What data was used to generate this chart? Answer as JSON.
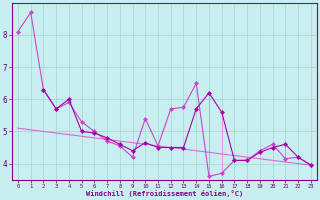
{
  "background_color": "#c8eef0",
  "grid_color": "#a0d8d0",
  "spine_color": "#880088",
  "xlabel": "Windchill (Refroidissement éolien,°C)",
  "xlabel_color": "#880088",
  "tick_color": "#660066",
  "xlim": [
    -0.5,
    23.5
  ],
  "ylim": [
    3.5,
    9.0
  ],
  "yticks": [
    4,
    5,
    6,
    7,
    8
  ],
  "xticks": [
    0,
    1,
    2,
    3,
    4,
    5,
    6,
    7,
    8,
    9,
    10,
    11,
    12,
    13,
    14,
    15,
    16,
    17,
    18,
    19,
    20,
    21,
    22,
    23
  ],
  "s1_x": [
    0,
    1,
    2,
    3,
    4,
    5,
    6,
    7,
    8,
    9,
    10,
    11,
    12,
    13,
    14,
    15,
    16,
    17,
    18,
    19,
    20,
    21,
    22,
    23
  ],
  "s1_y": [
    8.1,
    8.7,
    6.3,
    5.7,
    5.9,
    5.3,
    5.0,
    4.7,
    4.55,
    4.2,
    5.4,
    4.55,
    5.7,
    5.75,
    6.5,
    3.6,
    3.7,
    4.1,
    4.1,
    4.4,
    4.6,
    4.15,
    4.2,
    3.95
  ],
  "s2_x": [
    2,
    3,
    4,
    5,
    6,
    7,
    8,
    9,
    10,
    11,
    12,
    13,
    14,
    15,
    16,
    17,
    18,
    19,
    20,
    21,
    22,
    23
  ],
  "s2_y": [
    6.3,
    5.7,
    6.0,
    5.0,
    4.95,
    4.8,
    4.6,
    4.4,
    4.65,
    4.5,
    4.5,
    4.5,
    5.7,
    6.2,
    5.6,
    4.1,
    4.1,
    4.35,
    4.5,
    4.6,
    4.2,
    3.95
  ],
  "trend_x": [
    0,
    23
  ],
  "trend_y": [
    5.1,
    3.95
  ],
  "s1_color": "#cc44cc",
  "s2_color": "#aa00aa",
  "trend_color": "#dd66dd",
  "marker": "D",
  "markersize": 2.5,
  "linewidth": 0.8
}
